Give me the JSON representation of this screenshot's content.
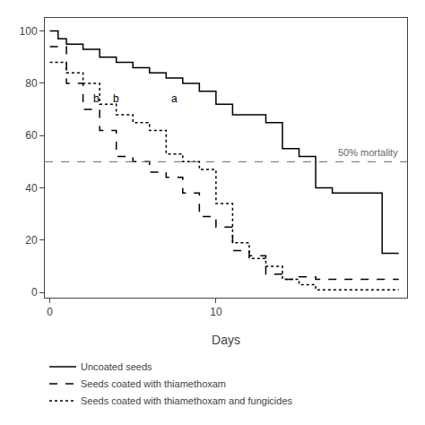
{
  "chart_data": {
    "type": "line",
    "xlabel": "Days",
    "xlim": [
      -0.3,
      21.5
    ],
    "ylim": [
      -2,
      105
    ],
    "xticks": [
      0,
      10
    ],
    "yticks": [
      0,
      20,
      40,
      60,
      80,
      100
    ],
    "grid": false,
    "legend": "bottom",
    "series": [
      {
        "name": "Uncoated seeds",
        "line_style": "solid",
        "color": "#000000",
        "x": [
          0,
          0.5,
          0.5,
          1,
          1,
          2,
          2,
          3,
          3,
          4,
          4,
          5,
          5,
          6,
          6,
          7,
          7,
          8,
          8,
          9,
          9,
          10,
          10,
          11,
          11,
          13,
          13,
          14,
          14,
          15,
          15,
          16,
          16,
          17,
          17,
          20,
          20,
          21
        ],
        "values": [
          100,
          100,
          97,
          97,
          95,
          95,
          93,
          93,
          90,
          90,
          88,
          88,
          86,
          86,
          84,
          84,
          82,
          82,
          80,
          80,
          77,
          77,
          72,
          72,
          68,
          68,
          65,
          65,
          55,
          55,
          52,
          52,
          40,
          40,
          38,
          38,
          15,
          15
        ]
      },
      {
        "name": "Seeds coated with thiamethoxam",
        "line_style": "dashed",
        "color": "#000000",
        "x": [
          0,
          1,
          1,
          2,
          2,
          3,
          3,
          4,
          4,
          5,
          5,
          6,
          6,
          7,
          7,
          8,
          8,
          9,
          9,
          10,
          10,
          11,
          11,
          12,
          12,
          13,
          13,
          14,
          14,
          15,
          15,
          16,
          16,
          19,
          19,
          21
        ],
        "values": [
          94,
          94,
          80,
          80,
          70,
          70,
          62,
          62,
          52,
          52,
          50,
          50,
          46,
          46,
          44,
          44,
          38,
          38,
          29,
          29,
          25,
          25,
          16,
          16,
          14,
          14,
          7,
          7,
          5,
          5,
          6,
          6,
          5,
          5,
          5,
          5
        ]
      },
      {
        "name": "Seeds coated with thiamethoxam and fungicides",
        "line_style": "dotted",
        "color": "#000000",
        "x": [
          0,
          1,
          1,
          2,
          2,
          3,
          3,
          4,
          4,
          5,
          5,
          6,
          6,
          7,
          7,
          8,
          8,
          9,
          9,
          10,
          10,
          11,
          11,
          12,
          12,
          13,
          13,
          14,
          14,
          15,
          15,
          16,
          16,
          20,
          20,
          21
        ],
        "values": [
          88,
          88,
          84,
          84,
          80,
          80,
          72,
          72,
          68,
          68,
          65,
          65,
          62,
          62,
          53,
          53,
          50,
          50,
          47,
          47,
          34,
          34,
          19,
          19,
          13,
          13,
          10,
          10,
          5,
          5,
          3,
          3,
          1,
          1,
          1,
          1
        ]
      }
    ],
    "hlines": [
      {
        "y": 50,
        "label": "50% mortality",
        "line_style": "dashed",
        "color": "#666666"
      }
    ],
    "annotations": [
      {
        "text": "b",
        "x": 2.8,
        "y": 71
      },
      {
        "text": "b",
        "x": 4.0,
        "y": 71
      },
      {
        "text": "a",
        "x": 7.5,
        "y": 71
      }
    ]
  }
}
